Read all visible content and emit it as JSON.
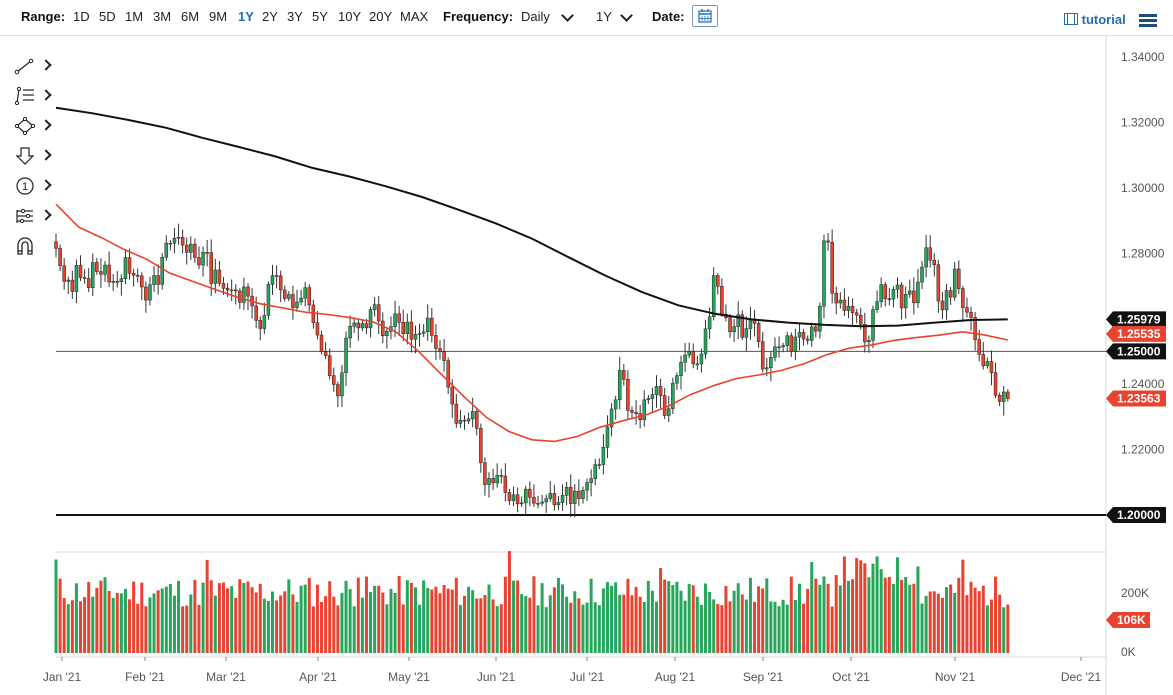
{
  "toolbar": {
    "range_label": "Range:",
    "ranges": [
      "1D",
      "5D",
      "1M",
      "3M",
      "6M",
      "9M",
      "1Y",
      "2Y",
      "3Y",
      "5Y",
      "10Y",
      "20Y",
      "MAX"
    ],
    "active_range": "1Y",
    "frequency_label": "Frequency:",
    "frequency_value": "Daily",
    "period_value": "1Y",
    "date_label": "Date:",
    "tutorial_label": "tutorial"
  },
  "drawing_tools": [
    "trend-line-icon",
    "fibonacci-icon",
    "shapes-icon",
    "arrow-down-icon",
    "annotation-number-icon",
    "pattern-icon",
    "magnet-icon"
  ],
  "drawing_tool_number": "1",
  "chart_data": {
    "type": "candlestick",
    "price_axis": {
      "ticks": [
        "1.34000",
        "1.32000",
        "1.30000",
        "1.28000",
        "1.26000",
        "1.24000",
        "1.22000",
        "1.20000"
      ],
      "range": [
        1.19,
        1.342
      ]
    },
    "price_labels": [
      {
        "text": "1.25979",
        "value": 1.25979,
        "color": "#111111"
      },
      {
        "text": "1.25535",
        "value": 1.25535,
        "color": "#e8432f"
      },
      {
        "text": "1.25000",
        "value": 1.25,
        "color": "#111111"
      },
      {
        "text": "1.23563",
        "value": 1.23563,
        "color": "#e8432f"
      },
      {
        "text": "1.20000",
        "value": 1.2,
        "color": "#111111"
      }
    ],
    "horizontal_lines": [
      1.25,
      1.2
    ],
    "x_labels": [
      "Jan '21",
      "Feb '21",
      "Mar '21",
      "Apr '21",
      "May '21",
      "Jun '21",
      "Jul '21",
      "Aug '21",
      "Sep '21",
      "Oct '21",
      "Nov '21",
      "Dec '21"
    ],
    "volume_axis": {
      "ticks": [
        "200K",
        "100K",
        "0K"
      ],
      "max": 260
    },
    "volume_label": {
      "text": "106K",
      "value": 106,
      "color": "#e8432f"
    },
    "up_color": "#26a65b",
    "down_color": "#e8432f",
    "ma_fast_color": "#e8432f",
    "ma_slow_color": "#111111",
    "daily_closes": [
      1.2815,
      1.2762,
      1.2714,
      1.2718,
      1.2683,
      1.2763,
      1.2726,
      1.2723,
      1.2695,
      1.2772,
      1.2744,
      1.2736,
      1.2764,
      1.2712,
      1.2714,
      1.2713,
      1.2722,
      1.2787,
      1.2739,
      1.2733,
      1.2731,
      1.2697,
      1.2657,
      1.2704,
      1.2732,
      1.2705,
      1.2788,
      1.2831,
      1.2831,
      1.2846,
      1.2849,
      1.2825,
      1.2803,
      1.2828,
      1.2787,
      1.2764,
      1.2803,
      1.2802,
      1.2708,
      1.2749,
      1.2708,
      1.2693,
      1.2688,
      1.2688,
      1.2685,
      1.265,
      1.2697,
      1.2669,
      1.2639,
      1.2595,
      1.257,
      1.261,
      1.2705,
      1.2732,
      1.2731,
      1.2688,
      1.2662,
      1.2674,
      1.2634,
      1.2651,
      1.2663,
      1.2695,
      1.2642,
      1.2588,
      1.255,
      1.2499,
      1.2487,
      1.2426,
      1.2399,
      1.2364,
      1.2435,
      1.2541,
      1.2577,
      1.2587,
      1.2572,
      1.2585,
      1.2572,
      1.2628,
      1.2643,
      1.2593,
      1.2548,
      1.2562,
      1.2576,
      1.2615,
      1.2589,
      1.2554,
      1.259,
      1.2537,
      1.2552,
      1.2555,
      1.256,
      1.2602,
      1.2549,
      1.2509,
      1.2499,
      1.2472,
      1.2391,
      1.2339,
      1.228,
      1.229,
      1.2287,
      1.2294,
      1.2317,
      1.2265,
      1.216,
      1.2093,
      1.2112,
      1.2098,
      1.2121,
      1.2119,
      1.2069,
      1.2044,
      1.2062,
      1.2034,
      1.2037,
      1.2079,
      1.2054,
      1.2036,
      1.2036,
      1.204,
      1.205,
      1.2066,
      1.2031,
      1.2038,
      1.206,
      1.2085,
      1.2035,
      1.2073,
      1.205,
      1.2076,
      1.2099,
      1.2111,
      1.2154,
      1.2154,
      1.2207,
      1.2269,
      1.2324,
      1.2352,
      1.2442,
      1.2415,
      1.232,
      1.2314,
      1.231,
      1.2291,
      1.2352,
      1.2356,
      1.2368,
      1.2393,
      1.2365,
      1.2304,
      1.2325,
      1.2403,
      1.2426,
      1.2467,
      1.2489,
      1.25,
      1.2462,
      1.2462,
      1.2492,
      1.2569,
      1.2606,
      1.2732,
      1.2699,
      1.2614,
      1.2603,
      1.256,
      1.2576,
      1.2612,
      1.2543,
      1.257,
      1.2599,
      1.2586,
      1.253,
      1.2446,
      1.245,
      1.2482,
      1.2514,
      1.2514,
      1.2518,
      1.2548,
      1.25,
      1.2544,
      1.2558,
      1.2538,
      1.2534,
      1.2575,
      1.2562,
      1.2638,
      1.2838,
      1.2834,
      1.2678,
      1.2648,
      1.2657,
      1.2625,
      1.2638,
      1.2618,
      1.2611,
      1.2583,
      1.2529,
      1.2534,
      1.2628,
      1.2652,
      1.2704,
      1.2661,
      1.266,
      1.269,
      1.2703,
      1.2633,
      1.2675,
      1.2685,
      1.2649,
      1.2712,
      1.2758,
      1.2817,
      1.2779,
      1.2765,
      1.2654,
      1.2627,
      1.2686,
      1.2666,
      1.2752,
      1.2692,
      1.2634,
      1.262,
      1.2604,
      1.2536,
      1.2491,
      1.2456,
      1.2469,
      1.2435,
      1.2366,
      1.2347,
      1.2376,
      1.2356
    ],
    "ma_slow_values": [
      1.3245,
      1.3228,
      1.3207,
      1.3184,
      1.3153,
      1.3125,
      1.3096,
      1.3061,
      1.3035,
      1.3005,
      1.2972,
      1.2933,
      1.2892,
      1.2845,
      1.2788,
      1.2732,
      1.2682,
      1.2641,
      1.2615,
      1.2598,
      1.2588,
      1.2581,
      1.2577,
      1.2579,
      1.2588,
      1.2596,
      1.2598
    ],
    "ma_fast_values": [
      1.295,
      1.288,
      1.2848,
      1.2812,
      1.2782,
      1.274,
      1.2715,
      1.269,
      1.2666,
      1.2646,
      1.2633,
      1.262,
      1.2613,
      1.2603,
      1.259,
      1.256,
      1.25,
      1.243,
      1.2362,
      1.2298,
      1.2255,
      1.223,
      1.2225,
      1.224,
      1.2268,
      1.2288,
      1.2305,
      1.2332,
      1.2368,
      1.2395,
      1.2417,
      1.2428,
      1.2442,
      1.2462,
      1.249,
      1.251,
      1.252,
      1.2534,
      1.2543,
      1.255,
      1.256,
      1.255,
      1.2535
    ]
  }
}
